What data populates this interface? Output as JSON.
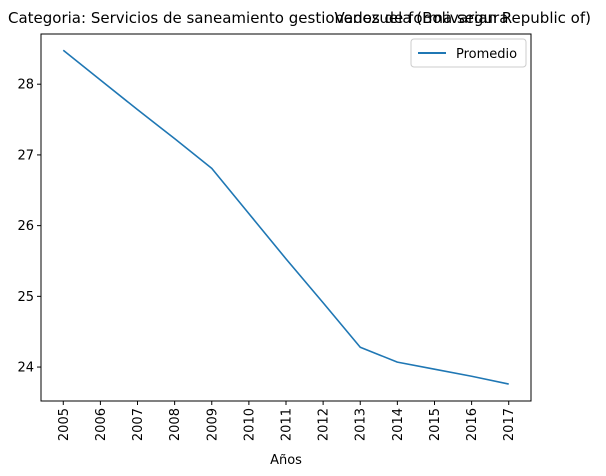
{
  "chart_data": {
    "type": "line",
    "title_left": "Categoria: Servicios de saneamiento gestionados de forma segura",
    "title_right": "Venezuela (Bolivarian Republic of)",
    "xlabel": "Años",
    "ylabel": "",
    "x": [
      "2005",
      "2006",
      "2007",
      "2008",
      "2009",
      "2010",
      "2011",
      "2012",
      "2013",
      "2014",
      "2015",
      "2016",
      "2017"
    ],
    "series": [
      {
        "name": "Promedio",
        "color": "#1f77b4",
        "values": [
          28.48,
          28.06,
          27.64,
          27.23,
          26.81,
          26.17,
          25.53,
          24.91,
          24.28,
          24.07,
          23.97,
          23.87,
          23.76
        ]
      }
    ],
    "yticks": [
      24,
      25,
      26,
      27,
      28
    ],
    "ylim": [
      23.52,
      28.71
    ],
    "grid": false,
    "legend_position": "upper right"
  }
}
